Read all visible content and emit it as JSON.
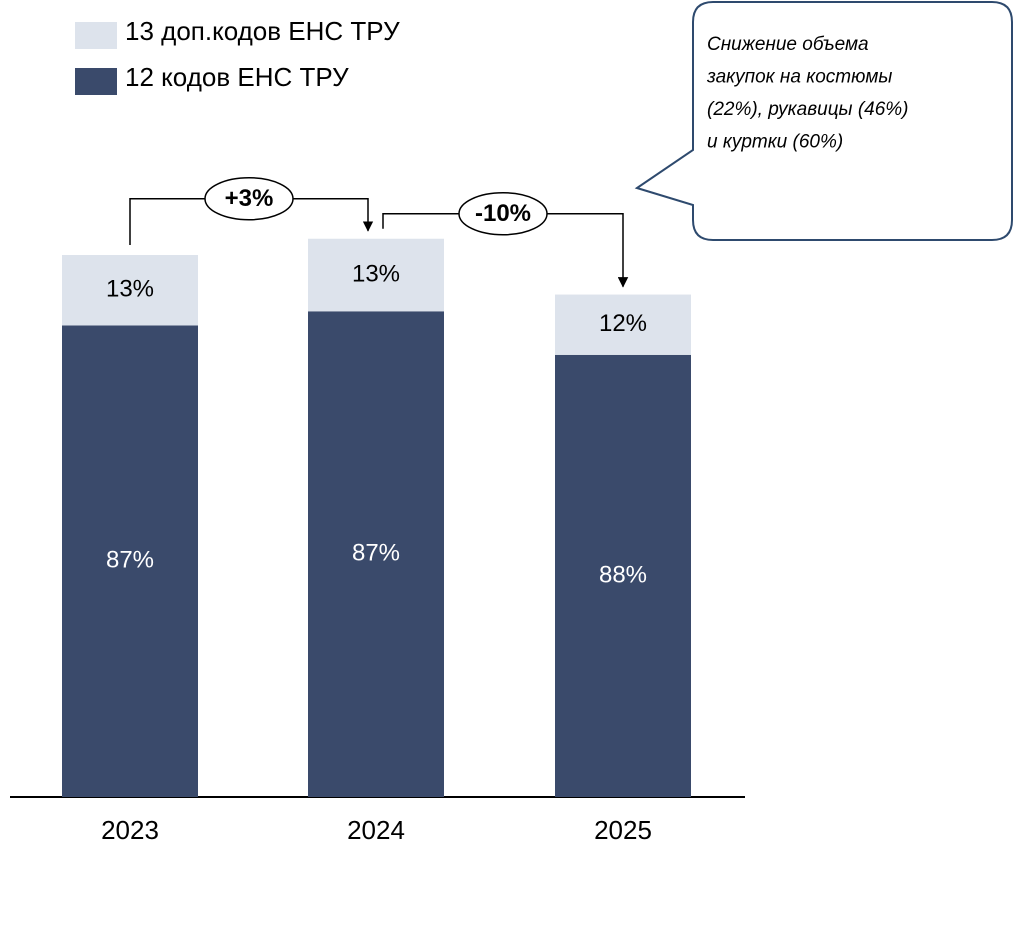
{
  "chart_data": {
    "type": "stacked_bar",
    "categories": [
      "2023",
      "2024",
      "2025"
    ],
    "series": [
      {
        "name": "12 кодов ЕНС ТРУ",
        "color": "#3a4a6b",
        "values": [
          87,
          87,
          88
        ]
      },
      {
        "name": "13 доп.кодов ЕНС ТРУ",
        "color": "#dde3ec",
        "values": [
          13,
          13,
          12
        ]
      }
    ],
    "value_labels": [
      [
        "87%",
        "87%",
        "88%"
      ],
      [
        "13%",
        "13%",
        "12%"
      ]
    ],
    "changes": [
      {
        "value": 3,
        "label": "+3%"
      },
      {
        "value": -10,
        "label": "-10%"
      }
    ],
    "callout": [
      "Снижение объема",
      "закупок на костюмы",
      "(22%), рукавицы (46%)",
      "и куртки (60%)"
    ]
  }
}
